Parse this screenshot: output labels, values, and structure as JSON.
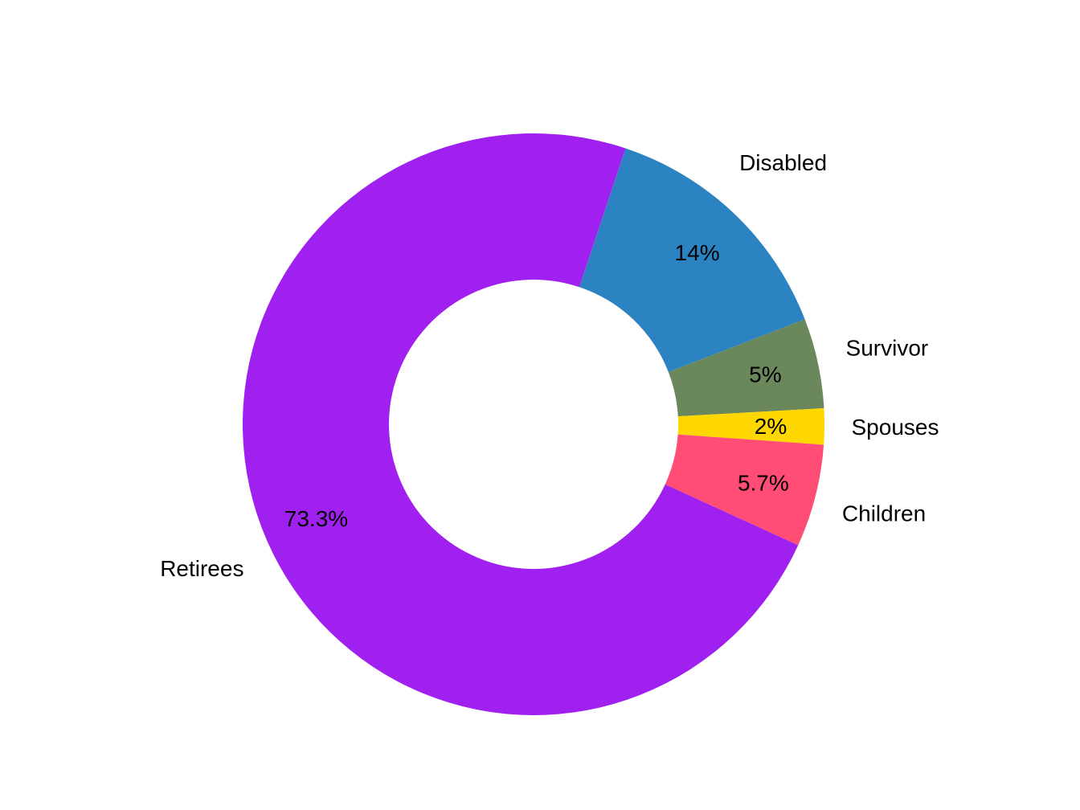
{
  "chart_data": {
    "type": "pie",
    "variant": "donut",
    "title": "",
    "legend": "none",
    "slices": [
      {
        "label": "Disabled",
        "value": 14.0,
        "value_label": "14%",
        "color": "#2b83c1"
      },
      {
        "label": "Survivor",
        "value": 5.0,
        "value_label": "5%",
        "color": "#6b875c"
      },
      {
        "label": "Spouses",
        "value": 2.0,
        "value_label": "2%",
        "color": "#ffd700"
      },
      {
        "label": "Children",
        "value": 5.7,
        "value_label": "5.7%",
        "color": "#ff4d75"
      },
      {
        "label": "Retirees",
        "value": 73.3,
        "value_label": "73.3%",
        "color": "#a020f0"
      }
    ]
  }
}
